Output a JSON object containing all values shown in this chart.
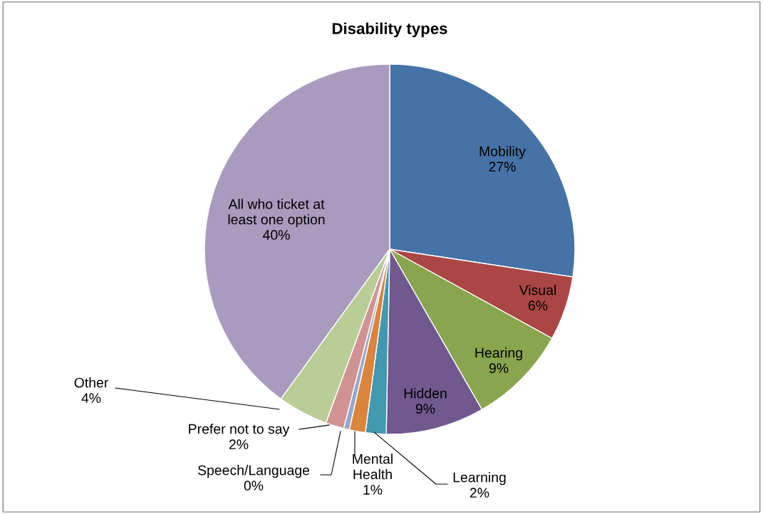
{
  "chart_data": {
    "type": "pie",
    "title": "Disability types",
    "categories": [
      "Mobility",
      "Visual",
      "Hearing",
      "Hidden",
      "Learning",
      "Mental Health",
      "Speech/Language",
      "Prefer not to say",
      "Other",
      "All who ticket at least one option"
    ],
    "values": [
      27.4,
      5.6,
      8.7,
      8.6,
      1.8,
      1.4,
      0.5,
      1.6,
      4.4,
      40.0
    ],
    "value_labels": [
      "27%",
      "6%",
      "9%",
      "9%",
      "2%",
      "1%",
      "0%",
      "2%",
      "4%",
      "40%"
    ],
    "colors": [
      "#4572a7",
      "#aa4643",
      "#89a54e",
      "#71588f",
      "#4198af",
      "#db843d",
      "#93a9cf",
      "#d19392",
      "#b9cd96",
      "#a99bbd"
    ],
    "legend": false
  }
}
